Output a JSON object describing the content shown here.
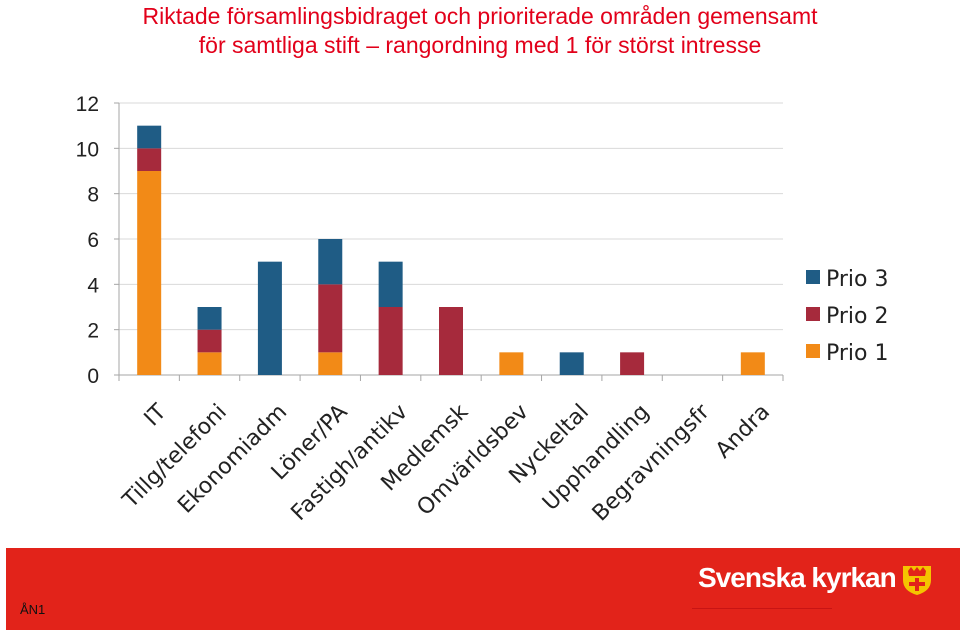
{
  "title": {
    "line1": "Riktade församlingsbidraget och prioriterade områden gemensamt",
    "line2": "för samtliga stift – rangordning med 1 för störst intresse"
  },
  "footer": {
    "slide_code": "ÅN1",
    "brand": "Svenska kyrkan",
    "brand_color": "#e2231a"
  },
  "chart_data": {
    "type": "bar",
    "stacked": true,
    "categories": [
      "IT",
      "Tillg/telefoni",
      "Ekonomiadm",
      "Löner/PA",
      "Fastigh/antikv",
      "Medlemsk",
      "Omvärldsbev",
      "Nyckeltal",
      "Upphandling",
      "Begravningsfr",
      "Andra"
    ],
    "series": [
      {
        "name": "Prio 1",
        "color": "#f28a17",
        "values": [
          9,
          1,
          0,
          1,
          0,
          0,
          1,
          0,
          0,
          0,
          1
        ]
      },
      {
        "name": "Prio 2",
        "color": "#a62a3c",
        "values": [
          1,
          1,
          0,
          3,
          3,
          3,
          0,
          0,
          1,
          0,
          0
        ]
      },
      {
        "name": "Prio 3",
        "color": "#1f5c85",
        "values": [
          1,
          1,
          5,
          2,
          2,
          0,
          0,
          1,
          0,
          0,
          0
        ]
      }
    ],
    "legend_order": [
      "Prio 3",
      "Prio 2",
      "Prio 1"
    ],
    "yticks": [
      "0",
      "2",
      "4",
      "6",
      "8",
      "10",
      "12"
    ],
    "ylim": [
      0,
      12
    ],
    "grid": true,
    "legend_position": "right"
  }
}
